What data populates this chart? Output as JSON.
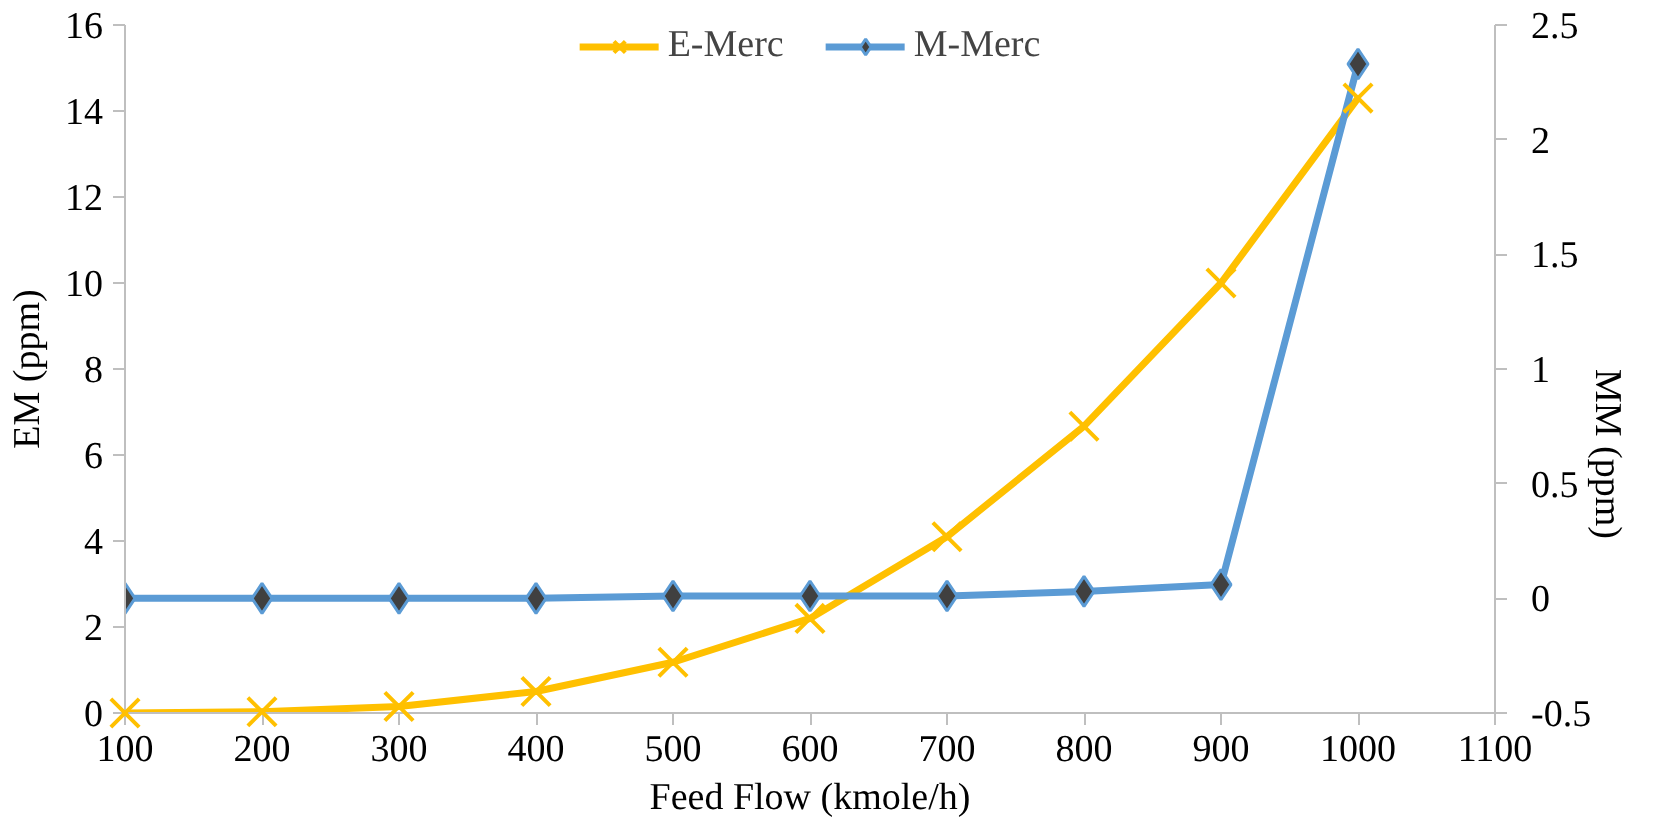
{
  "chart_data": {
    "type": "line",
    "xlabel": "Feed Flow (kmole/h)",
    "ylabel": "EM (ppm)",
    "y2label": "MM (ppm)",
    "x": [
      100,
      200,
      300,
      400,
      500,
      600,
      700,
      800,
      900,
      1000
    ],
    "series": [
      {
        "name": "E-Merc",
        "color": "#ffc000",
        "marker": "cross",
        "values": [
          0,
          0.03,
          0.15,
          0.5,
          1.18,
          2.2,
          4.1,
          6.67,
          10.0,
          14.3
        ]
      },
      {
        "name": "M-Merc",
        "color": "#5b9bd5",
        "marker": "diamond",
        "axis": "y2",
        "values": [
          0,
          0,
          0,
          0,
          0.01,
          0.01,
          0.01,
          0.03,
          0.06,
          2.33
        ]
      }
    ],
    "xlim": [
      100,
      1100
    ],
    "xticks": [
      100,
      200,
      300,
      400,
      500,
      600,
      700,
      800,
      900,
      1000,
      1100
    ],
    "ylim": [
      0,
      16
    ],
    "yticks": [
      0,
      2,
      4,
      6,
      8,
      10,
      12,
      14,
      16
    ],
    "y2lim": [
      -0.5,
      2.5
    ],
    "y2ticks": [
      -0.5,
      0,
      0.5,
      1,
      1.5,
      2,
      2.5
    ],
    "legend": "top",
    "grid": false
  }
}
